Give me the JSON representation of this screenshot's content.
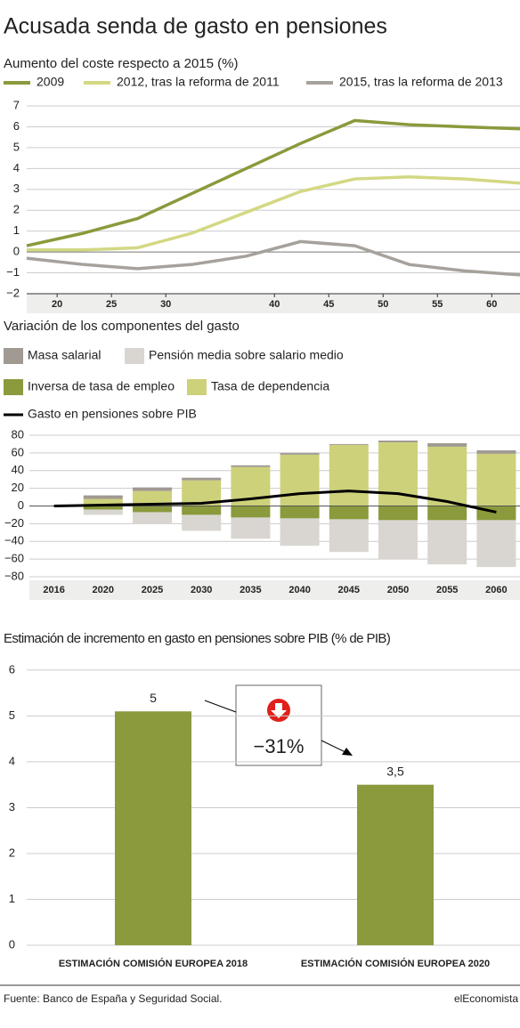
{
  "title": "Acusada senda de gasto en pensiones",
  "source": "Fuente: Banco de España y Seguridad Social.",
  "brand": "elEconomista",
  "chart_data": [
    {
      "type": "line",
      "title": "Aumento del coste respecto a 2015 (%)",
      "x": [
        17.2,
        22.4,
        27.4,
        32.4,
        37.4,
        42.4,
        47.4,
        52.4,
        57.4,
        62.6
      ],
      "series": [
        {
          "name": "2009",
          "color": "#8a9a3c",
          "values": [
            0.3,
            0.9,
            1.6,
            2.8,
            4.0,
            5.2,
            6.3,
            6.1,
            6.0,
            5.9
          ]
        },
        {
          "name": "2012, tras la reforma de 2011",
          "color": "#d3d883",
          "values": [
            0.1,
            0.1,
            0.2,
            0.9,
            1.9,
            2.9,
            3.5,
            3.6,
            3.5,
            3.3
          ]
        },
        {
          "name": "2015, tras la reforma de 2013",
          "color": "#a6a19b",
          "values": [
            -0.3,
            -0.6,
            -0.8,
            -0.6,
            -0.2,
            0.5,
            0.3,
            -0.6,
            -0.9,
            -1.1
          ]
        }
      ],
      "xlim": [
        17.2,
        62.6
      ],
      "xticks": [
        20,
        25,
        30,
        40,
        45,
        50,
        55,
        60
      ],
      "ylim": [
        -2,
        7
      ],
      "yticks": [
        {
          "value": -2,
          "label": "−2"
        },
        {
          "value": -1,
          "label": "−1"
        },
        0,
        1,
        2,
        3,
        4,
        5,
        6,
        7
      ],
      "grid": true
    },
    {
      "type": "bar",
      "title": "Variación de los componentes del gasto",
      "stacked": true,
      "categories": [
        "2016",
        "2020",
        "2025",
        "2030",
        "2035",
        "2040",
        "2045",
        "2050",
        "2055",
        "2060"
      ],
      "series": [
        {
          "name": "Masa salarial",
          "color": "#a09a93",
          "values": [
            null,
            4,
            4,
            3,
            2,
            2,
            1,
            2,
            4,
            4
          ]
        },
        {
          "name": "Pensión media sobre salario medio",
          "color": "#d9d6d1",
          "values": [
            null,
            -6,
            -13,
            -18,
            -24,
            -31,
            -37,
            -44,
            -50,
            -53
          ]
        },
        {
          "name": "Inversa de tasa de empleo",
          "color": "#8a9a3c",
          "values": [
            null,
            -4,
            -7,
            -10,
            -13,
            -14,
            -15,
            -16,
            -16,
            -16
          ]
        },
        {
          "name": "Tasa de dependencia",
          "color": "#cdd17a",
          "values": [
            null,
            8,
            17,
            29,
            44,
            58,
            69,
            72,
            67,
            59
          ]
        },
        {
          "name": "Gasto en pensiones sobre PIB",
          "color": "#000000",
          "type": "line",
          "values": [
            0,
            1,
            2,
            3,
            8,
            14,
            17,
            14,
            5,
            -7
          ]
        }
      ],
      "ylim": [
        -80,
        80
      ],
      "yticks": [
        {
          "value": -80,
          "label": "−80"
        },
        {
          "value": -60,
          "label": "−60"
        },
        {
          "value": -40,
          "label": "−40"
        },
        {
          "value": -20,
          "label": "−20"
        },
        0,
        20,
        40,
        60,
        80
      ],
      "grid": true
    },
    {
      "type": "bar",
      "title": "Estimación de incremento en gasto en pensiones sobre PIB (% de PIB)",
      "categories": [
        "ESTIMACIÓN COMISIÓN EUROPEA 2018",
        "ESTIMACIÓN COMISIÓN EUROPEA 2020"
      ],
      "values": [
        5.1,
        3.5
      ],
      "value_labels": [
        "5",
        "3,5"
      ],
      "color": "#8a9a3c",
      "annotation": "−31%",
      "ylim": [
        0,
        6.25
      ],
      "yticks": [
        0,
        1,
        2,
        3,
        4,
        5,
        6
      ],
      "grid": true
    }
  ]
}
